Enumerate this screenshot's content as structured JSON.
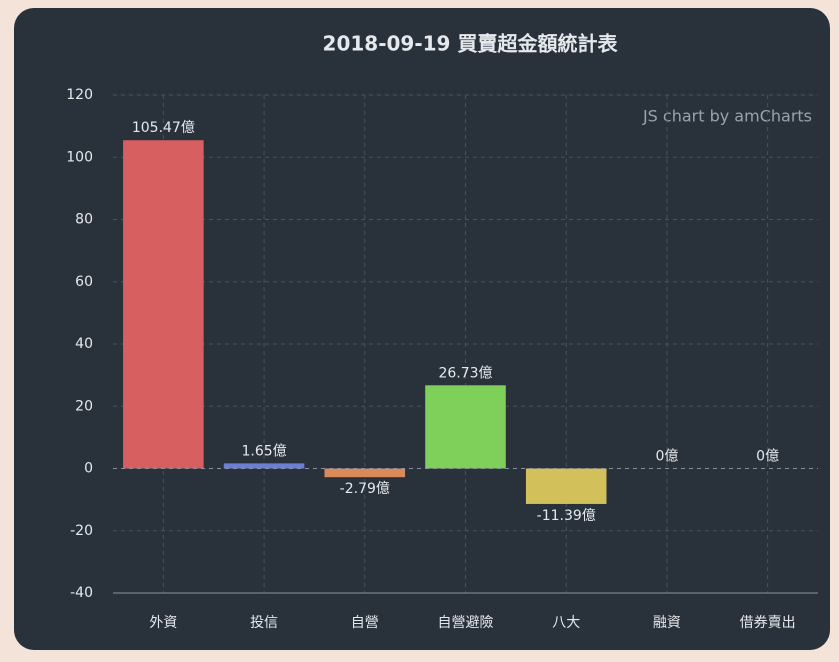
{
  "chart_data": {
    "type": "bar",
    "title": "2018-09-19 買賣超金額統計表",
    "credit": "JS chart by amCharts",
    "categories": [
      "外資",
      "投信",
      "自營",
      "自營避險",
      "八大",
      "融資",
      "借券賣出"
    ],
    "values": [
      105.47,
      1.65,
      -2.79,
      26.73,
      -11.39,
      0,
      0
    ],
    "value_labels": [
      "105.47億",
      "1.65億",
      "-2.79億",
      "26.73億",
      "-11.39億",
      "0億",
      "0億"
    ],
    "colors": [
      "#d75f5f",
      "#6b7fd7",
      "#d98a5a",
      "#7ed05a",
      "#d2c05a",
      "#6fa8dc",
      "#a06fd7"
    ],
    "ylim": [
      -40,
      120
    ],
    "yticks": [
      -40,
      -20,
      0,
      20,
      40,
      60,
      80,
      100,
      120
    ],
    "grid": true
  }
}
